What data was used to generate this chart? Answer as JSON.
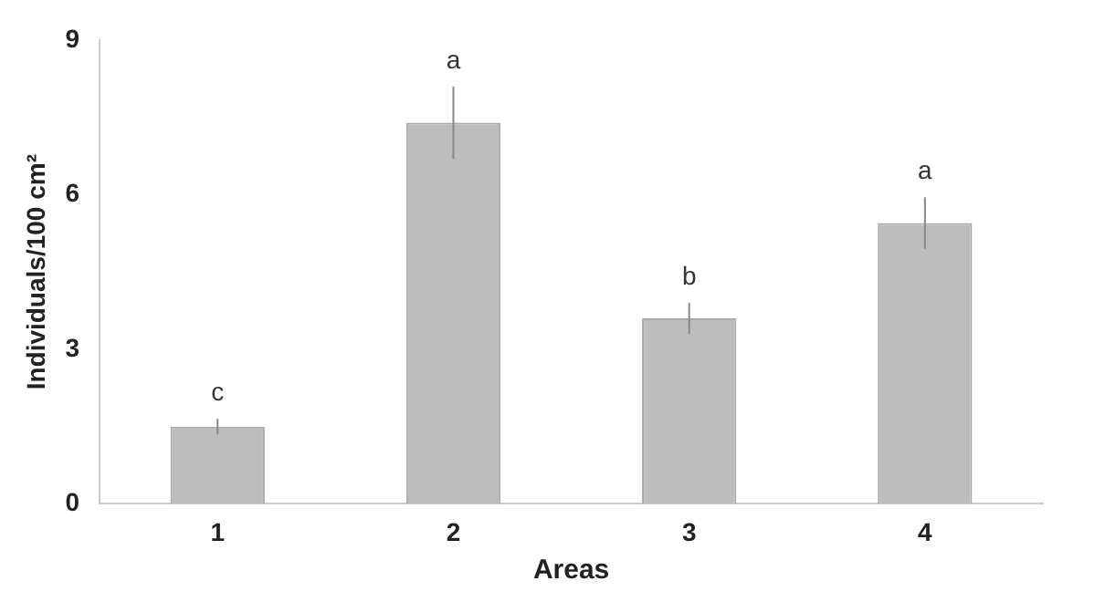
{
  "chart_data": {
    "type": "bar",
    "xlabel": "Areas",
    "ylabel": "Individuals/100 cm²",
    "categories": [
      "1",
      "2",
      "3",
      "4"
    ],
    "values": [
      1.5,
      7.4,
      3.6,
      5.45
    ],
    "errors": [
      0.15,
      0.7,
      0.3,
      0.5
    ],
    "color": "#bdbdbd",
    "ylim": [
      0,
      9
    ],
    "yticks": [
      0,
      3,
      6,
      9
    ],
    "grid": false,
    "legend": false,
    "annotations": [
      "c",
      "a",
      "b",
      "a"
    ]
  }
}
